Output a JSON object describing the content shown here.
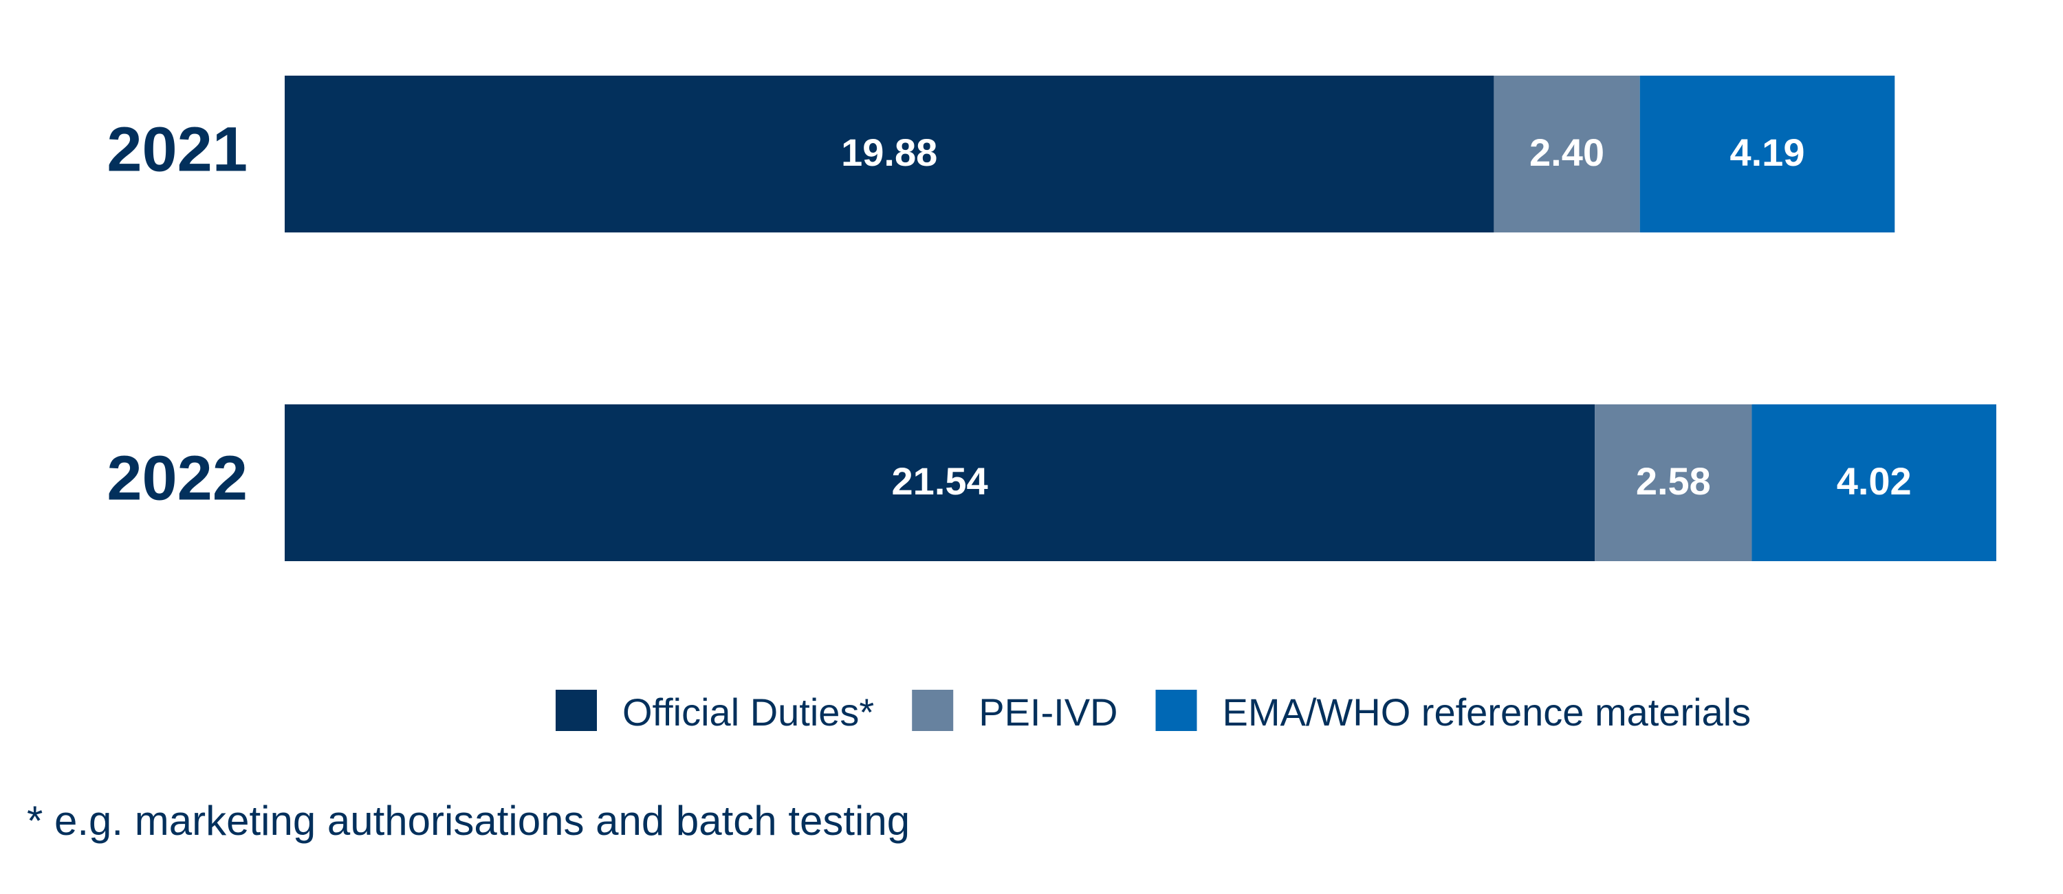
{
  "chart_data": {
    "type": "stacked-bar-horizontal",
    "categories": [
      "2021",
      "2022"
    ],
    "series": [
      {
        "name": "Official Duties*",
        "color": "#03305c",
        "values": [
          19.88,
          21.54
        ]
      },
      {
        "name": "PEI-IVD",
        "color": "#67829f",
        "values": [
          2.4,
          2.58
        ],
        "value_labels": [
          "2.40",
          "2.58"
        ]
      },
      {
        "name": "EMA/WHO reference materials",
        "color": "#0068b5",
        "values": [
          4.19,
          4.02
        ]
      }
    ],
    "footnote": "* e.g. marketing authorisations and batch testing"
  }
}
